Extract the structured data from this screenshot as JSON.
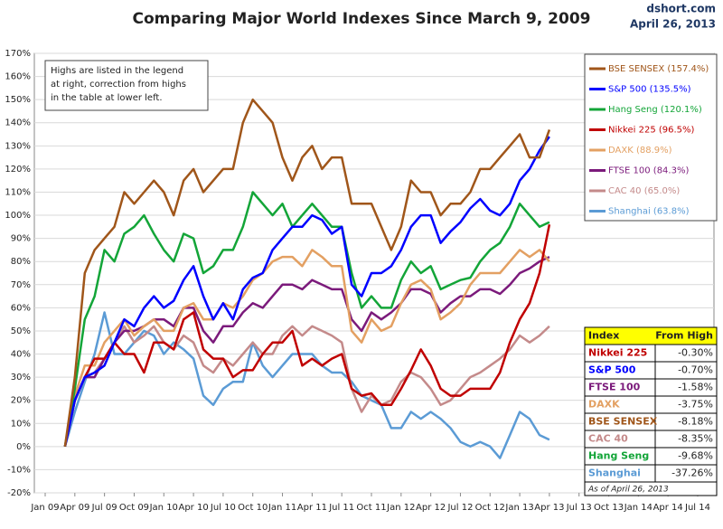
{
  "chart_data": {
    "type": "line",
    "title": "Comparing Major World Indexes Since March 9, 2009",
    "source": "dshort.com",
    "date": "April 26, 2013",
    "annotation": [
      "Highs are listed in the legend",
      "at right, correction from highs",
      "in the table at lower left."
    ],
    "xlim": [
      "2009-01",
      "2014-07"
    ],
    "xticks": [
      {
        "value": "2009-01",
        "label": "Jan 09"
      },
      {
        "value": "2009-04",
        "label": "Apr 09"
      },
      {
        "value": "2009-07",
        "label": "Jul 09"
      },
      {
        "value": "2009-10",
        "label": "Oct 09"
      },
      {
        "value": "2010-01",
        "label": "Jan 10"
      },
      {
        "value": "2010-04",
        "label": "Apr 10"
      },
      {
        "value": "2010-07",
        "label": "Jul 10"
      },
      {
        "value": "2010-10",
        "label": "Oct 10"
      },
      {
        "value": "2011-01",
        "label": "Jan 11"
      },
      {
        "value": "2011-04",
        "label": "Apr 11"
      },
      {
        "value": "2011-07",
        "label": "Jul 11"
      },
      {
        "value": "2011-10",
        "label": "Oct 11"
      },
      {
        "value": "2012-01",
        "label": "Jan 12"
      },
      {
        "value": "2012-04",
        "label": "Apr 12"
      },
      {
        "value": "2012-07",
        "label": "Jul 12"
      },
      {
        "value": "2012-10",
        "label": "Oct 12"
      },
      {
        "value": "2013-01",
        "label": "Jan 13"
      },
      {
        "value": "2013-04",
        "label": "Apr 13"
      },
      {
        "value": "2013-07",
        "label": "Jul 13"
      },
      {
        "value": "2013-10",
        "label": "Oct 13"
      },
      {
        "value": "2014-01",
        "label": "Jan 14"
      },
      {
        "value": "2014-04",
        "label": "Apr 14"
      },
      {
        "value": "2014-07",
        "label": "Jul 14"
      }
    ],
    "ylim": [
      -20,
      170
    ],
    "yticks": [
      {
        "value": -20,
        "label": "-20%"
      },
      {
        "value": -10,
        "label": "-10%"
      },
      {
        "value": 0,
        "label": "0%"
      },
      {
        "value": 10,
        "label": "10%"
      },
      {
        "value": 20,
        "label": "20%"
      },
      {
        "value": 30,
        "label": "30%"
      },
      {
        "value": 40,
        "label": "40%"
      },
      {
        "value": 50,
        "label": "50%"
      },
      {
        "value": 60,
        "label": "60%"
      },
      {
        "value": 70,
        "label": "70%"
      },
      {
        "value": 80,
        "label": "80%"
      },
      {
        "value": 90,
        "label": "90%"
      },
      {
        "value": 100,
        "label": "100%"
      },
      {
        "value": 110,
        "label": "110%"
      },
      {
        "value": 120,
        "label": "120%"
      },
      {
        "value": 130,
        "label": "130%"
      },
      {
        "value": 140,
        "label": "140%"
      },
      {
        "value": 150,
        "label": "150%"
      },
      {
        "value": 160,
        "label": "160%"
      },
      {
        "value": 170,
        "label": "170%"
      }
    ],
    "grid": true,
    "x": [
      "2009-03",
      "2009-04",
      "2009-05",
      "2009-06",
      "2009-07",
      "2009-08",
      "2009-09",
      "2009-10",
      "2009-11",
      "2009-12",
      "2010-01",
      "2010-02",
      "2010-03",
      "2010-04",
      "2010-05",
      "2010-06",
      "2010-07",
      "2010-08",
      "2010-09",
      "2010-10",
      "2010-11",
      "2010-12",
      "2011-01",
      "2011-02",
      "2011-03",
      "2011-04",
      "2011-05",
      "2011-06",
      "2011-07",
      "2011-08",
      "2011-09",
      "2011-10",
      "2011-11",
      "2011-12",
      "2012-01",
      "2012-02",
      "2012-03",
      "2012-04",
      "2012-05",
      "2012-06",
      "2012-07",
      "2012-08",
      "2012-09",
      "2012-10",
      "2012-11",
      "2012-12",
      "2013-01",
      "2013-02",
      "2013-03",
      "2013-04"
    ],
    "series": [
      {
        "name": "BSE SENSEX (157.4%)",
        "color": "#a0561a",
        "values": [
          0,
          30,
          75,
          85,
          90,
          95,
          110,
          105,
          110,
          115,
          110,
          100,
          115,
          120,
          110,
          115,
          120,
          120,
          140,
          150,
          145,
          140,
          125,
          115,
          125,
          130,
          120,
          125,
          125,
          105,
          105,
          105,
          95,
          85,
          95,
          115,
          110,
          110,
          100,
          105,
          105,
          110,
          120,
          120,
          125,
          130,
          135,
          125,
          125,
          137
        ]
      },
      {
        "name": "S&P 500 (135.5%)",
        "color": "#0000ff",
        "values": [
          0,
          20,
          30,
          32,
          35,
          45,
          55,
          52,
          60,
          65,
          60,
          63,
          72,
          78,
          65,
          55,
          62,
          55,
          68,
          73,
          75,
          85,
          90,
          95,
          95,
          100,
          98,
          92,
          95,
          70,
          65,
          75,
          75,
          78,
          85,
          95,
          100,
          100,
          88,
          93,
          97,
          103,
          107,
          102,
          100,
          105,
          115,
          120,
          128,
          134
        ]
      },
      {
        "name": "Hang Seng (120.1%)",
        "color": "#13a538",
        "values": [
          0,
          25,
          55,
          65,
          85,
          80,
          92,
          95,
          100,
          92,
          85,
          80,
          92,
          90,
          75,
          78,
          85,
          85,
          95,
          110,
          105,
          100,
          105,
          95,
          100,
          105,
          100,
          95,
          95,
          75,
          60,
          65,
          60,
          60,
          72,
          80,
          75,
          78,
          68,
          70,
          72,
          73,
          80,
          85,
          88,
          95,
          105,
          100,
          95,
          97
        ]
      },
      {
        "name": "Nikkei 225 (96.5%)",
        "color": "#c00000",
        "values": [
          0,
          20,
          30,
          38,
          38,
          45,
          40,
          40,
          32,
          45,
          45,
          42,
          55,
          58,
          42,
          38,
          38,
          30,
          33,
          33,
          40,
          45,
          45,
          50,
          35,
          38,
          35,
          38,
          40,
          25,
          22,
          23,
          18,
          18,
          25,
          33,
          42,
          35,
          25,
          22,
          22,
          25,
          25,
          25,
          32,
          45,
          55,
          62,
          75,
          96
        ]
      },
      {
        "name": "DAXK (88.9%)",
        "color": "#e3a062",
        "values": [
          0,
          22,
          35,
          35,
          45,
          50,
          55,
          48,
          52,
          55,
          50,
          50,
          60,
          62,
          55,
          55,
          62,
          60,
          65,
          72,
          75,
          80,
          82,
          82,
          78,
          85,
          82,
          78,
          78,
          50,
          45,
          55,
          50,
          52,
          62,
          70,
          72,
          68,
          55,
          58,
          62,
          70,
          75,
          75,
          75,
          80,
          85,
          82,
          85,
          80
        ]
      },
      {
        "name": "FTSE 100 (84.3%)",
        "color": "#7b1a7b",
        "values": [
          0,
          20,
          30,
          30,
          38,
          45,
          50,
          50,
          52,
          55,
          55,
          52,
          60,
          60,
          50,
          45,
          52,
          52,
          58,
          62,
          60,
          65,
          70,
          70,
          68,
          72,
          70,
          68,
          68,
          55,
          50,
          58,
          55,
          58,
          62,
          68,
          68,
          66,
          58,
          62,
          65,
          65,
          68,
          68,
          66,
          70,
          75,
          77,
          80,
          82
        ]
      },
      {
        "name": "CAC 40 (65.0%)",
        "color": "#c48a8a",
        "values": [
          0,
          20,
          30,
          32,
          38,
          45,
          52,
          45,
          48,
          52,
          45,
          42,
          48,
          45,
          35,
          32,
          38,
          35,
          40,
          45,
          40,
          40,
          48,
          52,
          48,
          52,
          50,
          48,
          45,
          25,
          15,
          22,
          18,
          20,
          28,
          32,
          30,
          25,
          18,
          20,
          25,
          30,
          32,
          35,
          38,
          42,
          48,
          45,
          48,
          52
        ]
      },
      {
        "name": "Shanghai (63.8%)",
        "color": "#5b9bd5",
        "values": [
          0,
          15,
          28,
          40,
          58,
          40,
          40,
          45,
          50,
          48,
          40,
          45,
          42,
          38,
          22,
          18,
          25,
          28,
          28,
          45,
          35,
          30,
          35,
          40,
          40,
          40,
          35,
          32,
          32,
          28,
          22,
          20,
          18,
          8,
          8,
          15,
          12,
          15,
          12,
          8,
          2,
          0,
          2,
          0,
          -5,
          5,
          15,
          12,
          5,
          3
        ]
      }
    ],
    "table": {
      "header": [
        "Index",
        "From High"
      ],
      "rows": [
        [
          "Nikkei 225",
          "-0.30%"
        ],
        [
          "S&P 500",
          "-0.70%"
        ],
        [
          "FTSE 100",
          "-1.58%"
        ],
        [
          "DAXK",
          "-3.75%"
        ],
        [
          "BSE SENSEX",
          "-8.18%"
        ],
        [
          "CAC 40",
          "-8.35%"
        ],
        [
          "Hang Seng",
          "-9.68%"
        ],
        [
          "Shanghai",
          "-37.26%"
        ]
      ],
      "row_colors": [
        "#c00000",
        "#0000ff",
        "#7b1a7b",
        "#e3a062",
        "#a0561a",
        "#c48a8a",
        "#13a538",
        "#5b9bd5"
      ],
      "note": "As of April 26, 2013"
    }
  }
}
